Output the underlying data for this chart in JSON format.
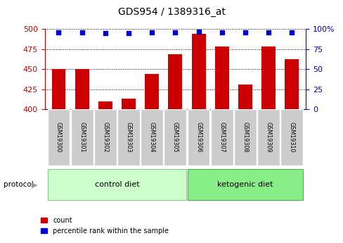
{
  "title": "GDS954 / 1389316_at",
  "samples": [
    "GSM19300",
    "GSM19301",
    "GSM19302",
    "GSM19303",
    "GSM19304",
    "GSM19305",
    "GSM19306",
    "GSM19307",
    "GSM19308",
    "GSM19309",
    "GSM19310"
  ],
  "counts": [
    450,
    450,
    410,
    413,
    444,
    469,
    494,
    478,
    431,
    478,
    463
  ],
  "percentiles": [
    96,
    96,
    95,
    95,
    96,
    96,
    97,
    96,
    96,
    96,
    96
  ],
  "bar_color": "#cc0000",
  "dot_color": "#0000cc",
  "ylim_left": [
    400,
    500
  ],
  "ylim_right": [
    0,
    100
  ],
  "yticks_left": [
    400,
    425,
    450,
    475,
    500
  ],
  "yticks_right": [
    0,
    25,
    50,
    75,
    100
  ],
  "left_axis_color": "#cc0000",
  "right_axis_color": "#0000cc",
  "ctrl_color": "#ccffcc",
  "keto_color": "#88ee88",
  "label_bg": "#cccccc",
  "ctrl_n": 6,
  "keto_n": 5
}
